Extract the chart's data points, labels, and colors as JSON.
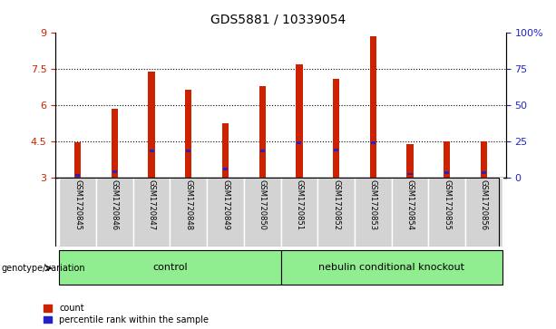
{
  "title": "GDS5881 / 10339054",
  "samples": [
    "GSM1720845",
    "GSM1720846",
    "GSM1720847",
    "GSM1720848",
    "GSM1720849",
    "GSM1720850",
    "GSM1720851",
    "GSM1720852",
    "GSM1720853",
    "GSM1720854",
    "GSM1720855",
    "GSM1720856"
  ],
  "count_values": [
    4.45,
    5.85,
    7.4,
    6.65,
    5.25,
    6.8,
    7.7,
    7.1,
    8.85,
    4.4,
    4.5,
    4.5
  ],
  "percentile_values": [
    3.1,
    3.25,
    4.1,
    4.1,
    3.35,
    4.1,
    4.45,
    4.15,
    4.45,
    3.15,
    3.2,
    3.2
  ],
  "bar_bottom": 3.0,
  "ylim": [
    3.0,
    9.0
  ],
  "yticks_left": [
    3,
    4.5,
    6,
    7.5,
    9
  ],
  "ytick_labels_left": [
    "3",
    "4.5",
    "6",
    "7.5",
    "9"
  ],
  "yticks_right": [
    3,
    4.5,
    6,
    7.5,
    9
  ],
  "ytick_labels_right": [
    "0",
    "25",
    "50",
    "75",
    "100%"
  ],
  "dotted_lines": [
    4.5,
    6.0,
    7.5
  ],
  "n_control": 6,
  "n_knockout": 6,
  "control_label": "control",
  "knockout_label": "nebulin conditional knockout",
  "genotype_label": "genotype/variation",
  "bar_color": "#cc2200",
  "blue_color": "#2222cc",
  "group_bg": "#90ee90",
  "sample_bg": "#d3d3d3",
  "bar_width": 0.18,
  "legend_count": "count",
  "legend_percentile": "percentile rank within the sample",
  "left_tick_color": "#cc2200",
  "right_tick_color": "#2222cc"
}
